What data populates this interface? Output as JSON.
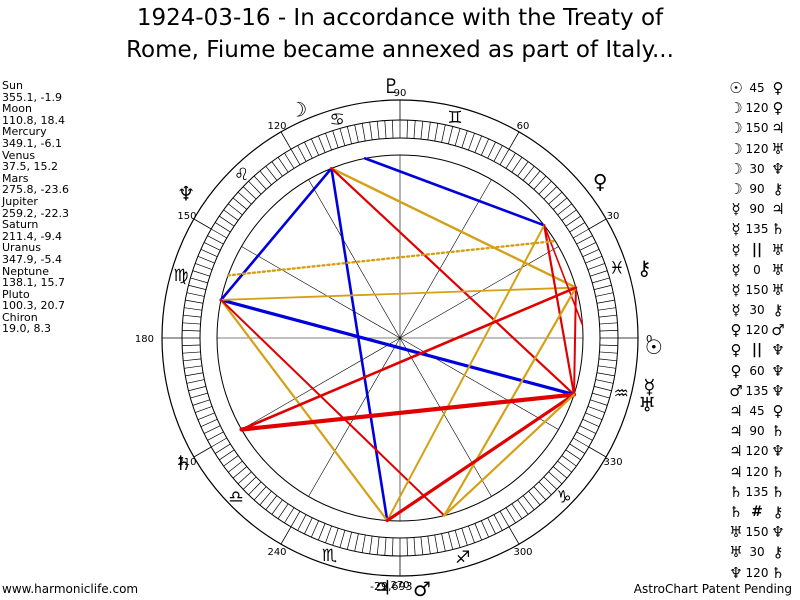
{
  "title": {
    "line1": "1924-03-16 - In accordance with the Treaty of",
    "line2": "Rome, Fiume became annexed as part of Italy..."
  },
  "planets": [
    {
      "name": "Sun",
      "coords": "355.1, -1.9"
    },
    {
      "name": "Moon",
      "coords": "110.8, 18.4"
    },
    {
      "name": "Mercury",
      "coords": "349.1, -6.1"
    },
    {
      "name": "Venus",
      "coords": "37.5, 15.2"
    },
    {
      "name": "Mars",
      "coords": "275.8, -23.6"
    },
    {
      "name": "Jupiter",
      "coords": "259.2, -22.3"
    },
    {
      "name": "Saturn",
      "coords": "211.4, -9.4"
    },
    {
      "name": "Uranus",
      "coords": "347.9, -5.4"
    },
    {
      "name": "Neptune",
      "coords": "138.1, 15.7"
    },
    {
      "name": "Pluto",
      "coords": "100.3, 20.7"
    },
    {
      "name": "Chiron",
      "coords": "19.0, 8.3"
    }
  ],
  "aspects": [
    {
      "p1": "☉",
      "angle": "45",
      "p2": "♀"
    },
    {
      "p1": "☽",
      "angle": "120",
      "p2": "♀"
    },
    {
      "p1": "☽",
      "angle": "150",
      "p2": "♃"
    },
    {
      "p1": "☽",
      "angle": "120",
      "p2": "♅"
    },
    {
      "p1": "☽",
      "angle": "30",
      "p2": "♆"
    },
    {
      "p1": "☽",
      "angle": "90",
      "p2": "⚷"
    },
    {
      "p1": "☿",
      "angle": "90",
      "p2": "♃"
    },
    {
      "p1": "☿",
      "angle": "135",
      "p2": "♄"
    },
    {
      "p1": "☿",
      "angle": "||",
      "p2": "♅"
    },
    {
      "p1": "☿",
      "angle": "0",
      "p2": "♅"
    },
    {
      "p1": "☿",
      "angle": "150",
      "p2": "♅"
    },
    {
      "p1": "☿",
      "angle": "30",
      "p2": "⚷"
    },
    {
      "p1": "♀",
      "angle": "120",
      "p2": "♂"
    },
    {
      "p1": "♀",
      "angle": "||",
      "p2": "♆"
    },
    {
      "p1": "♀",
      "angle": "60",
      "p2": "♆"
    },
    {
      "p1": "♂",
      "angle": "135",
      "p2": "♆"
    },
    {
      "p1": "♃",
      "angle": "45",
      "p2": "♀"
    },
    {
      "p1": "♃",
      "angle": "90",
      "p2": "♄"
    },
    {
      "p1": "♃",
      "angle": "120",
      "p2": "♆"
    },
    {
      "p1": "♃",
      "angle": "120",
      "p2": "♄"
    },
    {
      "p1": "♄",
      "angle": "135",
      "p2": "♄"
    },
    {
      "p1": "♄",
      "angle": "#",
      "p2": "⚷"
    },
    {
      "p1": "♅",
      "angle": "150",
      "p2": "♆"
    },
    {
      "p1": "♅",
      "angle": "30",
      "p2": "⚷"
    },
    {
      "p1": "♆",
      "angle": "120",
      "p2": "♄"
    }
  ],
  "wheel": {
    "degree_labels": [
      "90",
      "60",
      "30",
      "0",
      "330",
      "300",
      "270",
      "240",
      "210",
      "180",
      "150",
      "120"
    ],
    "ascendant_label": "-29,693"
  },
  "footer": {
    "left": "www.harmoniclife.com",
    "right": "AstroChart Patent Pending"
  },
  "colors": {
    "trine": "#d4a017",
    "square": "#e00000",
    "sextile": "#0000dd",
    "dotted_orange": "#d4a017",
    "dotted_red": "#e00000"
  }
}
